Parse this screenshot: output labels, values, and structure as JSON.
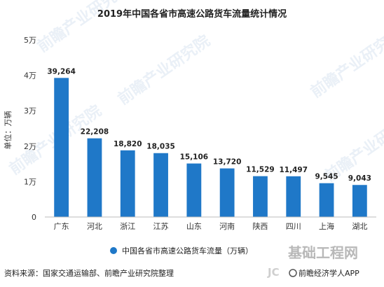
{
  "chart_data": {
    "type": "bar",
    "title": "2019年中国各省市高速公路货车流量统计情况",
    "ylabel": "单位：万辆",
    "categories": [
      "广东",
      "河北",
      "浙江",
      "江苏",
      "山东",
      "河南",
      "陕西",
      "四川",
      "上海",
      "湖北"
    ],
    "series": [
      {
        "name": "中国各省市高速公路货车流量（万辆）",
        "values": [
          39264,
          22208,
          18820,
          18035,
          15106,
          13720,
          11529,
          11497,
          9545,
          9043
        ]
      }
    ],
    "value_labels": [
      "39,264",
      "22,208",
      "18,820",
      "18,035",
      "15,106",
      "13,720",
      "11,529",
      "11,497",
      "9,545",
      "9,043"
    ],
    "ylim": [
      0,
      50000
    ],
    "yticks": [
      0,
      10000,
      20000,
      30000,
      40000,
      50000
    ],
    "ytick_labels": [
      "0",
      "1万",
      "2万",
      "3万",
      "4万",
      "5万"
    ],
    "grid": false,
    "legend_position": "bottom",
    "bar_color": "#1f78c8"
  },
  "source": "资料来源：国家交通运输部、前瞻产业研究院整理",
  "watermark": {
    "site": "基础工程网",
    "brand": "前瞻经济学人APP"
  }
}
